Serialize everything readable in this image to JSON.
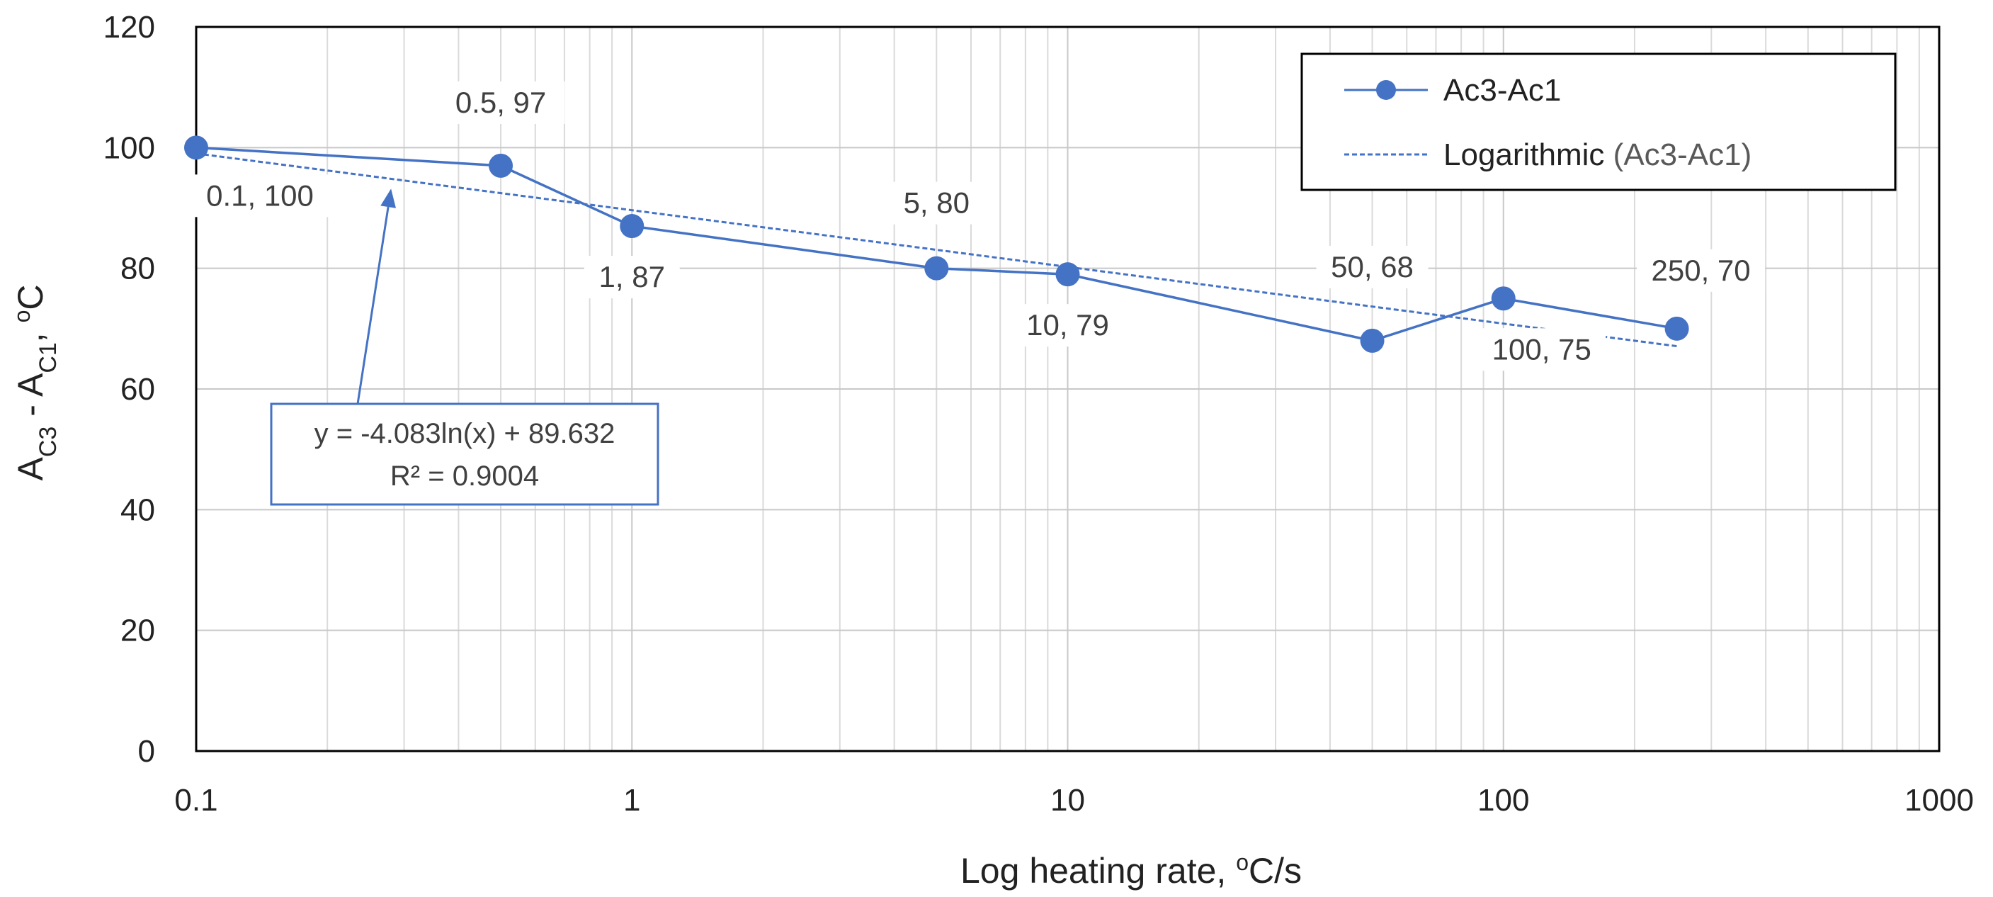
{
  "chart_data": {
    "type": "scatter",
    "title": "",
    "xlabel_main": "Log heating rate, ",
    "xlabel_sup": "o",
    "xlabel_tail": "C/s",
    "ylabel_main": "A",
    "ylabel_sub1": "C3",
    "ylabel_mid": " - A",
    "ylabel_sub2": "C1",
    "ylabel_tail1": ", ",
    "ylabel_sup": "o",
    "ylabel_tail2": "C",
    "x_scale": "log",
    "xlim": [
      0.1,
      1000
    ],
    "ylim": [
      0,
      120
    ],
    "x_ticks": [
      0.1,
      1,
      10,
      100,
      1000
    ],
    "x_tick_labels": [
      "0.1",
      "1",
      "10",
      "100",
      "1000"
    ],
    "y_ticks": [
      0,
      20,
      40,
      60,
      80,
      100,
      120
    ],
    "y_tick_labels": [
      "0",
      "20",
      "40",
      "60",
      "80",
      "100",
      "120"
    ],
    "grid": true,
    "series": [
      {
        "name": "Ac3-Ac1",
        "style": "line-with-markers",
        "color": "#4472c4",
        "points": [
          {
            "x": 0.1,
            "y": 100,
            "label": "0.1, 100"
          },
          {
            "x": 0.5,
            "y": 97,
            "label": "0.5, 97"
          },
          {
            "x": 1,
            "y": 87,
            "label": "1, 87"
          },
          {
            "x": 5,
            "y": 80,
            "label": "5, 80"
          },
          {
            "x": 10,
            "y": 79,
            "label": "10, 79"
          },
          {
            "x": 50,
            "y": 68,
            "label": "50, 68"
          },
          {
            "x": 100,
            "y": 75,
            "label": "100, 75"
          },
          {
            "x": 250,
            "y": 70,
            "label": "250, 70"
          }
        ]
      }
    ],
    "trendline": {
      "name_main": "Logarithmic",
      "name_paren": "(Ac3-Ac1)",
      "type": "logarithmic",
      "a": -4.083,
      "b": 89.632,
      "x_range": [
        0.1,
        250
      ],
      "color": "#4472c4",
      "equation": "y = -4.083ln(x) + 89.632",
      "r_squared": "R² = 0.9004",
      "arrow_target_x": 0.28
    },
    "legend": {
      "placement": "top-right",
      "series_label": "Ac3-Ac1"
    }
  }
}
